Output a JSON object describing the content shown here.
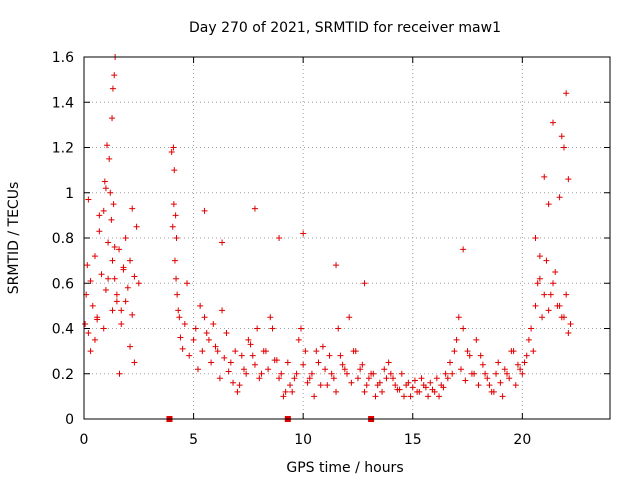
{
  "chart_data": {
    "type": "scatter",
    "title": "Day 270 of 2021, SRMTID for receiver maw1",
    "xlabel": "GPS time / hours",
    "ylabel": "SRMTID / TECUs",
    "xlim": [
      0,
      24
    ],
    "ylim": [
      0,
      1.6
    ],
    "xticks": [
      0,
      5,
      10,
      15,
      20
    ],
    "xtick_labels": [
      "0",
      "5",
      "10",
      "15",
      "20"
    ],
    "yticks": [
      0,
      0.2,
      0.4,
      0.6,
      0.8,
      1,
      1.2,
      1.4,
      1.6
    ],
    "ytick_labels": [
      "0",
      "0.2",
      "0.4",
      "0.6",
      "0.8",
      "1",
      "1.2",
      "1.4",
      "1.6"
    ],
    "grid": true,
    "marker": "+",
    "color": "#e00000",
    "series": [
      {
        "name": "SRMTID",
        "x": [
          0.05,
          0.1,
          0.15,
          0.2,
          0.3,
          0.4,
          0.5,
          0.6,
          0.7,
          0.8,
          0.9,
          1.0,
          1.1,
          1.2,
          1.25,
          1.3,
          1.35,
          1.4,
          1.5,
          1.6,
          1.7,
          1.8,
          1.9,
          2.0,
          2.1,
          2.2,
          2.3,
          2.4,
          2.5,
          0.3,
          0.5,
          0.7,
          0.9,
          1.1,
          1.3,
          1.5,
          1.7,
          1.9,
          2.1,
          2.3,
          0.2,
          0.6,
          1.0,
          1.4,
          1.8,
          2.2,
          1.05,
          1.15,
          1.28,
          1.32,
          1.38,
          1.42,
          0.95,
          1.62,
          4.0,
          4.1,
          4.2,
          4.3,
          4.4,
          4.5,
          4.6,
          4.8,
          5.0,
          5.2,
          5.4,
          5.6,
          5.8,
          6.0,
          6.2,
          6.4,
          6.6,
          6.8,
          7.0,
          7.2,
          7.4,
          7.6,
          7.8,
          8.0,
          8.2,
          8.4,
          8.6,
          8.8,
          9.0,
          9.2,
          9.4,
          9.6,
          9.8,
          10.0,
          10.2,
          10.4,
          10.6,
          10.8,
          11.0,
          11.2,
          11.4,
          11.6,
          11.8,
          12.0,
          12.2,
          12.4,
          12.6,
          12.8,
          13.0,
          13.2,
          13.4,
          13.6,
          13.8,
          14.0,
          14.2,
          14.4,
          14.6,
          14.8,
          15.0,
          15.2,
          15.4,
          15.6,
          15.8,
          16.0,
          16.2,
          16.4,
          16.6,
          16.8,
          17.0,
          17.2,
          17.4,
          17.6,
          17.8,
          18.0,
          18.2,
          18.4,
          18.6,
          18.8,
          19.0,
          19.2,
          19.4,
          19.6,
          19.8,
          20.0,
          20.2,
          20.4,
          20.6,
          20.8,
          21.0,
          21.2,
          21.4,
          21.6,
          21.8,
          22.0,
          22.2,
          4.05,
          4.15,
          4.25,
          4.35,
          4.7,
          5.1,
          5.3,
          5.5,
          5.7,
          5.9,
          6.1,
          6.3,
          6.5,
          6.7,
          6.9,
          7.1,
          7.3,
          7.5,
          7.7,
          7.9,
          8.1,
          8.3,
          8.5,
          8.7,
          8.9,
          9.1,
          9.3,
          9.5,
          9.7,
          9.9,
          10.1,
          10.3,
          10.5,
          10.7,
          10.9,
          11.1,
          11.3,
          11.5,
          11.7,
          11.9,
          12.1,
          12.3,
          12.5,
          12.7,
          12.9,
          13.1,
          13.3,
          13.5,
          13.7,
          13.9,
          14.1,
          14.3,
          14.5,
          14.7,
          14.9,
          15.1,
          15.3,
          15.5,
          15.7,
          15.9,
          16.1,
          16.3,
          16.5,
          16.7,
          16.9,
          17.1,
          17.3,
          17.5,
          17.7,
          17.9,
          18.1,
          18.3,
          18.5,
          18.7,
          18.9,
          19.1,
          19.3,
          19.5,
          19.7,
          19.9,
          20.1,
          20.3,
          20.5,
          20.7,
          20.9,
          21.1,
          21.3,
          21.5,
          21.7,
          21.9,
          22.1,
          4.08,
          4.12,
          4.18,
          4.22,
          5.5,
          6.3,
          7.8,
          8.9,
          10.0,
          11.5,
          12.8,
          17.3,
          20.6,
          21.0,
          21.4,
          21.8,
          22.0,
          22.1,
          21.9,
          21.7,
          21.2,
          20.8
        ],
        "y": [
          0.42,
          0.55,
          0.68,
          0.38,
          0.61,
          0.5,
          0.72,
          0.45,
          0.83,
          0.64,
          0.92,
          0.57,
          0.78,
          1.0,
          0.88,
          0.7,
          0.95,
          0.62,
          0.52,
          0.75,
          0.48,
          0.66,
          0.8,
          0.58,
          0.7,
          0.46,
          0.63,
          0.85,
          0.6,
          0.3,
          0.35,
          0.9,
          0.4,
          0.62,
          0.48,
          0.55,
          0.42,
          0.52,
          0.32,
          0.25,
          0.97,
          0.44,
          1.02,
          0.76,
          0.67,
          0.93,
          1.21,
          1.15,
          1.33,
          1.46,
          1.52,
          1.6,
          1.05,
          0.2,
          1.18,
          0.95,
          0.62,
          0.48,
          0.36,
          0.31,
          0.42,
          0.28,
          0.35,
          0.22,
          0.3,
          0.38,
          0.25,
          0.32,
          0.18,
          0.27,
          0.21,
          0.16,
          0.12,
          0.28,
          0.2,
          0.33,
          0.24,
          0.18,
          0.3,
          0.22,
          0.4,
          0.26,
          0.2,
          0.12,
          0.15,
          0.18,
          0.35,
          0.24,
          0.16,
          0.2,
          0.3,
          0.15,
          0.22,
          0.28,
          0.18,
          0.4,
          0.24,
          0.2,
          0.16,
          0.3,
          0.22,
          0.12,
          0.18,
          0.2,
          0.15,
          0.12,
          0.18,
          0.2,
          0.15,
          0.13,
          0.1,
          0.16,
          0.14,
          0.12,
          0.18,
          0.14,
          0.16,
          0.12,
          0.1,
          0.14,
          0.18,
          0.2,
          0.35,
          0.22,
          0.17,
          0.28,
          0.2,
          0.15,
          0.24,
          0.18,
          0.12,
          0.2,
          0.16,
          0.22,
          0.18,
          0.3,
          0.24,
          0.2,
          0.28,
          0.4,
          0.5,
          0.62,
          0.55,
          0.48,
          0.6,
          0.5,
          0.45,
          0.55,
          0.42,
          0.85,
          0.7,
          0.55,
          0.45,
          0.6,
          0.4,
          0.5,
          0.45,
          0.35,
          0.42,
          0.3,
          0.48,
          0.38,
          0.25,
          0.3,
          0.15,
          0.22,
          0.35,
          0.28,
          0.4,
          0.2,
          0.3,
          0.45,
          0.26,
          0.18,
          0.1,
          0.25,
          0.12,
          0.2,
          0.4,
          0.3,
          0.18,
          0.1,
          0.25,
          0.32,
          0.15,
          0.2,
          0.12,
          0.28,
          0.22,
          0.45,
          0.3,
          0.18,
          0.24,
          0.15,
          0.2,
          0.1,
          0.16,
          0.22,
          0.25,
          0.18,
          0.13,
          0.2,
          0.15,
          0.1,
          0.17,
          0.12,
          0.15,
          0.1,
          0.13,
          0.18,
          0.15,
          0.2,
          0.25,
          0.3,
          0.45,
          0.4,
          0.3,
          0.2,
          0.35,
          0.28,
          0.2,
          0.15,
          0.12,
          0.25,
          0.1,
          0.2,
          0.3,
          0.15,
          0.22,
          0.25,
          0.35,
          0.3,
          0.6,
          0.45,
          0.7,
          0.55,
          0.65,
          0.5,
          0.45,
          0.38,
          1.2,
          1.1,
          0.9,
          0.8,
          0.92,
          0.78,
          0.93,
          0.8,
          0.82,
          0.68,
          0.6,
          0.75,
          0.8,
          1.07,
          1.31,
          1.25,
          1.44,
          1.06,
          1.2,
          0.98,
          0.95,
          0.72
        ]
      }
    ],
    "extra_markers": {
      "description": "small filled red squares on the x-axis",
      "x": [
        3.9,
        9.3,
        13.1
      ],
      "y": [
        0,
        0,
        0
      ]
    }
  }
}
